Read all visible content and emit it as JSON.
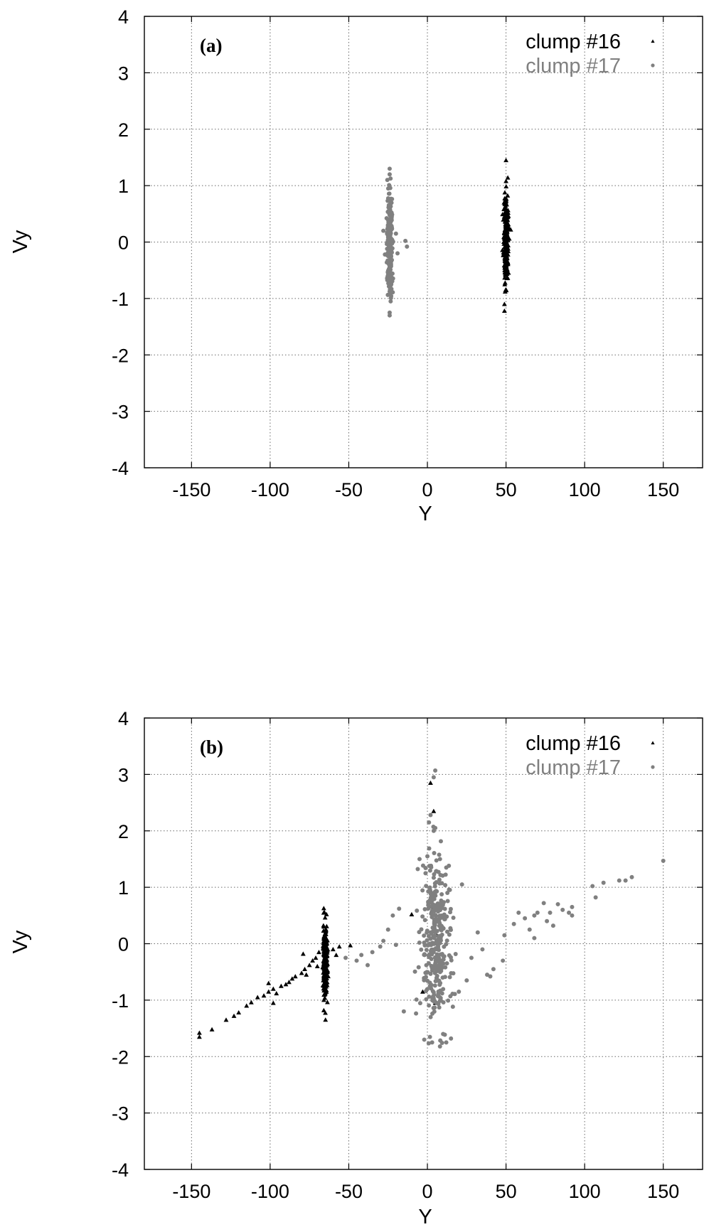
{
  "chart_data": [
    {
      "type": "scatter",
      "panel_label": "(a)",
      "xlabel": "Y",
      "ylabel": "Vy",
      "xlim": [
        -180,
        175
      ],
      "ylim": [
        -4,
        4
      ],
      "xticks": [
        -150,
        -100,
        -50,
        0,
        50,
        100,
        150
      ],
      "yticks": [
        -4,
        -3,
        -2,
        -1,
        0,
        1,
        2,
        3,
        4
      ],
      "grid": true,
      "legend_position": "top-right",
      "series": [
        {
          "name": "clump #16",
          "color": "#000000",
          "marker": "triangle",
          "cluster": {
            "x_center": 50,
            "x_spread": 1.2,
            "y_min": -1.22,
            "y_max": 1.45,
            "y_sigma": 0.38,
            "count": 260
          },
          "points": [
            [
              50,
              1.45
            ],
            [
              50,
              1.08
            ],
            [
              49,
              -1.22
            ],
            [
              49,
              -1.1
            ],
            [
              53,
              0.22
            ],
            [
              52,
              0.25
            ],
            [
              51,
              -0.35
            ]
          ]
        },
        {
          "name": "clump #17",
          "color": "#808080",
          "marker": "circle",
          "cluster": {
            "x_center": -24,
            "x_spread": 1.4,
            "y_min": -1.3,
            "y_max": 1.3,
            "y_sigma": 0.42,
            "count": 260
          },
          "points": [
            [
              -24,
              1.3
            ],
            [
              -24,
              1.2
            ],
            [
              -24,
              -1.3
            ],
            [
              -24,
              -1.25
            ],
            [
              -14,
              0.02
            ],
            [
              -13,
              -0.08
            ],
            [
              -20,
              0.15
            ],
            [
              -28,
              0.2
            ],
            [
              -27,
              -0.22
            ],
            [
              -19,
              -0.2
            ]
          ]
        }
      ]
    },
    {
      "type": "scatter",
      "panel_label": "(b)",
      "xlabel": "Y",
      "ylabel": "Vy",
      "xlim": [
        -180,
        175
      ],
      "ylim": [
        -4,
        4
      ],
      "xticks": [
        -150,
        -100,
        -50,
        0,
        50,
        100,
        150
      ],
      "yticks": [
        -4,
        -3,
        -2,
        -1,
        0,
        1,
        2,
        3,
        4
      ],
      "grid": true,
      "legend_position": "top-right",
      "series": [
        {
          "name": "clump #16",
          "color": "#000000",
          "marker": "triangle",
          "cluster": {
            "x_center": -65,
            "x_spread": 1.2,
            "y_min": -1.5,
            "y_max": 0.82,
            "y_sigma": 0.35,
            "y_offset": -0.3,
            "count": 240
          },
          "points": [
            [
              -145,
              -1.65
            ],
            [
              -145,
              -1.58
            ],
            [
              -137,
              -1.52
            ],
            [
              -128,
              -1.35
            ],
            [
              -123,
              -1.28
            ],
            [
              -120,
              -1.22
            ],
            [
              -115,
              -1.1
            ],
            [
              -112,
              -1.04
            ],
            [
              -108,
              -0.95
            ],
            [
              -104,
              -0.92
            ],
            [
              -101,
              -0.85
            ],
            [
              -98,
              -0.8
            ],
            [
              -96,
              -0.88
            ],
            [
              -93,
              -0.75
            ],
            [
              -90,
              -0.72
            ],
            [
              -88,
              -0.68
            ],
            [
              -84,
              -0.58
            ],
            [
              -80,
              -0.52
            ],
            [
              -78,
              -0.45
            ],
            [
              -75,
              -0.38
            ],
            [
              -73,
              -0.3
            ],
            [
              -71,
              -0.25
            ],
            [
              -70,
              -0.4
            ],
            [
              -69,
              -0.15
            ],
            [
              -60,
              -0.1
            ],
            [
              -58,
              -0.2
            ],
            [
              -56,
              -0.05
            ],
            [
              -49,
              -0.03
            ],
            [
              -98,
              -1.05
            ],
            [
              -101,
              -0.7
            ],
            [
              -86,
              -0.62
            ],
            [
              -79,
              -0.18
            ],
            [
              -77,
              -0.55
            ],
            [
              2,
              2.85
            ],
            [
              4,
              2.35
            ],
            [
              -3,
              -0.85
            ],
            [
              5,
              -1.05
            ],
            [
              6,
              0.15
            ],
            [
              -10,
              0.52
            ],
            [
              3,
              0.6
            ]
          ]
        },
        {
          "name": "clump #17",
          "color": "#808080",
          "marker": "circle",
          "cluster": {
            "x_center": 5,
            "x_spread": 8,
            "y_min": -1.85,
            "y_max": 2.1,
            "y_sigma": 0.7,
            "count": 330
          },
          "points": [
            [
              5,
              3.07
            ],
            [
              4,
              2.95
            ],
            [
              2,
              2.28
            ],
            [
              1,
              2.15
            ],
            [
              5,
              2.05
            ],
            [
              4,
              2.0
            ],
            [
              -52,
              -0.25
            ],
            [
              -45,
              -0.3
            ],
            [
              -42,
              -0.2
            ],
            [
              -38,
              -0.38
            ],
            [
              -35,
              -0.15
            ],
            [
              -30,
              -0.05
            ],
            [
              -28,
              0.05
            ],
            [
              -25,
              0.25
            ],
            [
              -22,
              0.5
            ],
            [
              -18,
              0.62
            ],
            [
              -15,
              -1.2
            ],
            [
              -20,
              -0.02
            ],
            [
              28,
              -0.25
            ],
            [
              32,
              0.2
            ],
            [
              35,
              -0.1
            ],
            [
              38,
              -0.55
            ],
            [
              40,
              -0.58
            ],
            [
              42,
              -0.45
            ],
            [
              48,
              -0.3
            ],
            [
              49,
              0.15
            ],
            [
              55,
              0.35
            ],
            [
              58,
              0.55
            ],
            [
              62,
              0.45
            ],
            [
              65,
              0.25
            ],
            [
              68,
              0.1
            ],
            [
              68,
              0.5
            ],
            [
              70,
              0.55
            ],
            [
              74,
              0.72
            ],
            [
              76,
              0.4
            ],
            [
              78,
              0.55
            ],
            [
              80,
              0.32
            ],
            [
              83,
              0.7
            ],
            [
              86,
              0.6
            ],
            [
              90,
              0.55
            ],
            [
              92,
              0.65
            ],
            [
              92,
              0.5
            ],
            [
              105,
              1.02
            ],
            [
              107,
              0.82
            ],
            [
              112,
              1.08
            ],
            [
              122,
              1.12
            ],
            [
              126,
              1.12
            ],
            [
              130,
              1.18
            ],
            [
              150,
              1.47
            ],
            [
              -2,
              -1.7
            ],
            [
              3,
              -1.75
            ],
            [
              8,
              -1.82
            ],
            [
              12,
              -1.75
            ],
            [
              15,
              -1.68
            ],
            [
              10,
              -1.6
            ],
            [
              -5,
              1.5
            ],
            [
              0,
              1.55
            ],
            [
              8,
              1.5
            ],
            [
              12,
              1.35
            ],
            [
              22,
              1.05
            ],
            [
              20,
              -0.85
            ],
            [
              25,
              -0.65
            ]
          ]
        }
      ]
    }
  ]
}
